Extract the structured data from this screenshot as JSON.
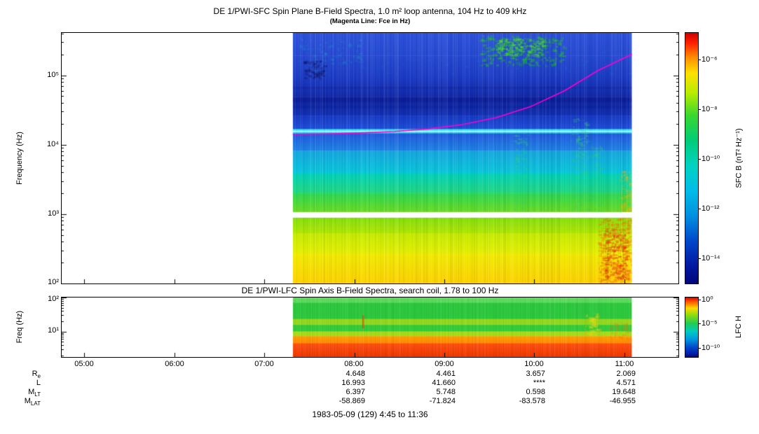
{
  "figure": {
    "top_panel": {
      "title": "DE 1/PWI-SFC  Spin Plane B-Field Spectra, 1.0 m² loop antenna, 104 Hz to 409 kHz",
      "subtitle": "(Magenta Line: Fce in Hz)",
      "ylabel": "Frequency (Hz)",
      "yticks": [
        "10⁵",
        "10⁴",
        "10³",
        "10²"
      ],
      "colorbar": {
        "label": "SFC B (nT² Hz⁻¹)",
        "ticks": [
          "10⁻⁶",
          "10⁻⁸",
          "10⁻¹⁰",
          "10⁻¹²",
          "10⁻¹⁴"
        ]
      }
    },
    "bottom_panel": {
      "title": "DE 1/PWI-LFC  Spin Axis B-Field Spectra, search coil, 1.78 to 100 Hz",
      "ylabel": "Freq (Hz)",
      "yticks": [
        "10²",
        "10¹"
      ],
      "colorbar": {
        "label": "LFC H",
        "ticks": [
          "10⁰",
          "10⁻⁵",
          "10⁻¹⁰"
        ]
      }
    },
    "xaxis": {
      "ticks": [
        "05:00",
        "06:00",
        "07:00",
        "08:00",
        "09:00",
        "10:00",
        "11:00"
      ]
    },
    "ephemeris": {
      "rows": [
        {
          "label_main": "R",
          "label_sub": "e",
          "values": [
            "4.648",
            "4.461",
            "3.657",
            "2.069"
          ]
        },
        {
          "label_main": "L",
          "label_sub": "",
          "values": [
            "16.993",
            "41.660",
            "****",
            "4.571"
          ]
        },
        {
          "label_main": "M",
          "label_sub": "LT",
          "values": [
            "6.397",
            "5.748",
            "0.598",
            "19.648"
          ]
        },
        {
          "label_main": "M",
          "label_sub": "LAT",
          "values": [
            "-58.869",
            "-71.824",
            "-83.578",
            "-46.955"
          ]
        }
      ]
    },
    "footer": "1983-05-09 (129) 4:45 to 11:36"
  },
  "chart_data": [
    {
      "type": "heatmap",
      "name": "SFC spin-plane B-field spectrogram",
      "title": "DE 1/PWI-SFC Spin Plane B-Field Spectra, 1.0 m² loop antenna, 104 Hz to 409 kHz",
      "ylabel": "Frequency (Hz)",
      "y_range_hz": [
        100,
        409000
      ],
      "x_axis_time_range": [
        "04:45",
        "11:36"
      ],
      "data_time_range": [
        "07:19",
        "11:05"
      ],
      "z_label": "SFC B (nT² Hz⁻¹)",
      "z_tick_values": [
        "1e-6",
        "1e-8",
        "1e-10",
        "1e-12",
        "1e-14"
      ],
      "fce_line_hz": {
        "07:19": 15000,
        "08:30": 17000,
        "09:30": 32000,
        "10:15": 70000,
        "11:05": 210000
      },
      "features_described": [
        "no data before ~07:19 and after ~11:05 (white)",
        "bright green emission patch ~09:25-10:20 above 100 kHz",
        "dark blue low-intensity horizontal bands 20-60 kHz",
        "bright cyan horizontal line near 16 kHz across whole pass",
        "magenta Fce line rising from ~15 kHz to ~210 kHz",
        "white data-gap band near 1 kHz",
        "green-to-yellow broadband below 1 kHz",
        "intense orange-red burst 10:50-11:05 below 1 kHz"
      ],
      "colorbar_stops": [
        [
          0,
          "#cc0000"
        ],
        [
          0.04,
          "#ff2000"
        ],
        [
          0.1,
          "#ff9000"
        ],
        [
          0.16,
          "#ffe000"
        ],
        [
          0.24,
          "#b8ec00"
        ],
        [
          0.33,
          "#38d830"
        ],
        [
          0.43,
          "#00cc78"
        ],
        [
          0.53,
          "#00d2c2"
        ],
        [
          0.63,
          "#00bce8"
        ],
        [
          0.73,
          "#0090e0"
        ],
        [
          0.83,
          "#0048cc"
        ],
        [
          0.93,
          "#0018a0"
        ],
        [
          1,
          "#000678"
        ]
      ],
      "render": {
        "seed": 11,
        "noise": 0.22,
        "data_x0": 0.3747,
        "data_x1": 0.9246,
        "xticks": [
          0.0365,
          0.1825,
          0.3285,
          0.4745,
          0.6204,
          0.7664,
          0.9124
        ],
        "log": {
          "top": 5.6117,
          "bottom": 2.0
        },
        "bands": [
          {
            "y0": 0.0,
            "y1": 0.09,
            "colors": [
              "#2e52dc",
              "#2649d2"
            ]
          },
          {
            "y0": 0.09,
            "y1": 0.175,
            "colors": [
              "#2649d2",
              "#1c3cc6"
            ]
          },
          {
            "y0": 0.175,
            "y1": 0.255,
            "colors": [
              "#1c3cc6",
              "#1128aa"
            ]
          },
          {
            "y0": 0.255,
            "y1": 0.33,
            "colors": [
              "#0d209c",
              "#1130b4"
            ]
          },
          {
            "y0": 0.33,
            "y1": 0.384,
            "colors": [
              "#1638c4",
              "#1f4eda"
            ]
          },
          {
            "y0": 0.384,
            "y1": 0.391,
            "colors": [
              "#38ecf4"
            ]
          },
          {
            "y0": 0.391,
            "y1": 0.395,
            "colors": [
              "#e6ffff"
            ]
          },
          {
            "y0": 0.395,
            "y1": 0.401,
            "colors": [
              "#2cd8ec"
            ]
          },
          {
            "y0": 0.401,
            "y1": 0.47,
            "colors": [
              "#2257e0",
              "#1c84e4"
            ]
          },
          {
            "y0": 0.47,
            "y1": 0.56,
            "colors": [
              "#16a6e0",
              "#06c8da"
            ]
          },
          {
            "y0": 0.56,
            "y1": 0.64,
            "colors": [
              "#00d2bc",
              "#22d87c"
            ]
          },
          {
            "y0": 0.64,
            "y1": 0.715,
            "colors": [
              "#2ad854",
              "#6cdc1e"
            ]
          },
          {
            "y0": 0.715,
            "y1": 0.737,
            "colors": [
              "#ffffff"
            ]
          },
          {
            "y0": 0.737,
            "y1": 0.8,
            "colors": [
              "#86e00e",
              "#b2e800"
            ]
          },
          {
            "y0": 0.8,
            "y1": 0.88,
            "colors": [
              "#c6ec00",
              "#e6f000"
            ]
          },
          {
            "y0": 0.88,
            "y1": 1.0,
            "colors": [
              "#f2ec00",
              "#ffd200"
            ]
          }
        ],
        "features": [
          {
            "type": "hband",
            "y0": 0.215,
            "y1": 0.223,
            "color": "#12249e",
            "alpha": 0.5
          },
          {
            "type": "hband",
            "y0": 0.262,
            "y1": 0.276,
            "color": "#0a1a90",
            "alpha": 0.55
          },
          {
            "type": "hband",
            "y0": 0.292,
            "y1": 0.3,
            "color": "#0a1a90",
            "alpha": 0.45
          },
          {
            "type": "speckle",
            "x0": 0.0,
            "x1": 1.0,
            "y0": 0.04,
            "y1": 0.16,
            "color": "#1870cc",
            "alpha": 0.22,
            "n": 220,
            "seed": 3
          },
          {
            "type": "speckle",
            "x0": 0.55,
            "x1": 0.8,
            "y0": 0.01,
            "y1": 0.13,
            "color": "#18c818",
            "alpha": 0.5,
            "n": 280,
            "seed": 4
          },
          {
            "type": "speckle",
            "x0": 0.6,
            "x1": 0.74,
            "y0": 0.02,
            "y1": 0.09,
            "color": "#48e81c",
            "alpha": 0.6,
            "n": 150,
            "seed": 5
          },
          {
            "type": "speckle",
            "x0": 0.02,
            "x1": 0.2,
            "y0": 0.02,
            "y1": 0.12,
            "color": "#1a9ad0",
            "alpha": 0.3,
            "n": 90,
            "seed": 6
          },
          {
            "type": "speckle",
            "x0": 0.03,
            "x1": 0.09,
            "y0": 0.11,
            "y1": 0.18,
            "color": "#0a1464",
            "alpha": 0.5,
            "n": 70,
            "seed": 7
          },
          {
            "type": "speckle",
            "x0": 0.65,
            "x1": 0.69,
            "y0": 0.4,
            "y1": 0.72,
            "color": "#30d878",
            "alpha": 0.3,
            "n": 120,
            "seed": 8
          },
          {
            "type": "speckle",
            "x0": 0.82,
            "x1": 0.87,
            "y0": 0.34,
            "y1": 0.72,
            "color": "#2cd274",
            "alpha": 0.35,
            "n": 170,
            "seed": 9
          },
          {
            "type": "speckle",
            "x0": 0.875,
            "x1": 0.91,
            "y0": 0.44,
            "y1": 0.72,
            "color": "#2cd274",
            "alpha": 0.3,
            "n": 110,
            "seed": 10
          },
          {
            "type": "speckle",
            "x0": 0.965,
            "x1": 1.0,
            "y0": 0.55,
            "y1": 0.8,
            "color": "#ffb000",
            "alpha": 0.45,
            "n": 130,
            "seed": 11
          },
          {
            "type": "speckle",
            "x0": 0.9,
            "x1": 1.0,
            "y0": 0.74,
            "y1": 1.0,
            "color": "#ff6000",
            "alpha": 0.5,
            "n": 320,
            "seed": 12
          },
          {
            "type": "speckle",
            "x0": 0.915,
            "x1": 0.985,
            "y0": 0.78,
            "y1": 0.985,
            "color": "#e62810",
            "alpha": 0.5,
            "n": 220,
            "seed": 13
          }
        ],
        "gaps": [
          [
            0.715,
            0.737
          ]
        ],
        "lines": [
          {
            "color": "#ff00cc",
            "width": 1.6,
            "points": [
              [
                0,
                0.405
              ],
              [
                0.1,
                0.403
              ],
              [
                0.2,
                0.399
              ],
              [
                0.3,
                0.393
              ],
              [
                0.4,
                0.383
              ],
              [
                0.5,
                0.366
              ],
              [
                0.6,
                0.338
              ],
              [
                0.7,
                0.295
              ],
              [
                0.8,
                0.232
              ],
              [
                0.9,
                0.15
              ],
              [
                1.0,
                0.085
              ]
            ]
          }
        ]
      }
    },
    {
      "type": "heatmap",
      "name": "LFC spin-axis B-field spectrogram",
      "title": "DE 1/PWI-LFC Spin Axis B-Field Spectra, search coil, 1.78 to 100 Hz",
      "ylabel": "Freq (Hz)",
      "y_range_hz": [
        1.78,
        100
      ],
      "x_axis_time_range": [
        "04:45",
        "11:36"
      ],
      "data_time_range": [
        "07:19",
        "11:05"
      ],
      "z_label": "LFC H",
      "z_tick_values": [
        "1e0",
        "1e-5",
        "1e-10"
      ],
      "features_described": [
        "green broadband 10-100 Hz with banded structure",
        "yellow-green stripes near 20 Hz and 7 Hz",
        "strong orange-red band below ~4 Hz for entire pass"
      ],
      "colorbar_stops": [
        [
          0,
          "#dd0000"
        ],
        [
          0.08,
          "#ff6000"
        ],
        [
          0.18,
          "#ffd800"
        ],
        [
          0.3,
          "#88dc10"
        ],
        [
          0.44,
          "#20cc55"
        ],
        [
          0.57,
          "#00ccc0"
        ],
        [
          0.7,
          "#0098e0"
        ],
        [
          0.85,
          "#0040c8"
        ],
        [
          1,
          "#000a90"
        ]
      ],
      "render": {
        "seed": 5,
        "noise": 0.14,
        "data_x0": 0.3747,
        "data_x1": 0.9246,
        "xticks": [
          0.0365,
          0.1825,
          0.3285,
          0.4745,
          0.6204,
          0.7664,
          0.9124
        ],
        "log": {
          "top": 2.0,
          "bottom": 0.2504
        },
        "bands": [
          {
            "y0": 0.0,
            "y1": 0.09,
            "colors": [
              "#5cda5c"
            ]
          },
          {
            "y0": 0.09,
            "y1": 0.36,
            "colors": [
              "#2cc83c"
            ]
          },
          {
            "y0": 0.36,
            "y1": 0.46,
            "colors": [
              "#94d81c"
            ]
          },
          {
            "y0": 0.46,
            "y1": 0.57,
            "colors": [
              "#34cc38"
            ]
          },
          {
            "y0": 0.57,
            "y1": 0.65,
            "colors": [
              "#a8dc18"
            ]
          },
          {
            "y0": 0.65,
            "y1": 0.77,
            "colors": [
              "#ffa000",
              "#ff8a00"
            ]
          },
          {
            "y0": 0.77,
            "y1": 1.0,
            "colors": [
              "#ff5010",
              "#ef3600"
            ]
          }
        ],
        "features": [
          {
            "type": "vband",
            "x0": 0.205,
            "x1": 0.21,
            "y0": 0.3,
            "y1": 0.52,
            "color": "#e04000",
            "alpha": 0.7
          },
          {
            "type": "speckle",
            "x0": 0.86,
            "x1": 0.9,
            "y0": 0.25,
            "y1": 0.62,
            "color": "#ffd800",
            "alpha": 0.4,
            "n": 60,
            "seed": 9
          },
          {
            "type": "speckle",
            "x0": 0.93,
            "x1": 0.99,
            "y0": 0.4,
            "y1": 0.7,
            "color": "#ff7000",
            "alpha": 0.3,
            "n": 60,
            "seed": 13
          }
        ],
        "gaps": [],
        "lines": []
      }
    }
  ]
}
